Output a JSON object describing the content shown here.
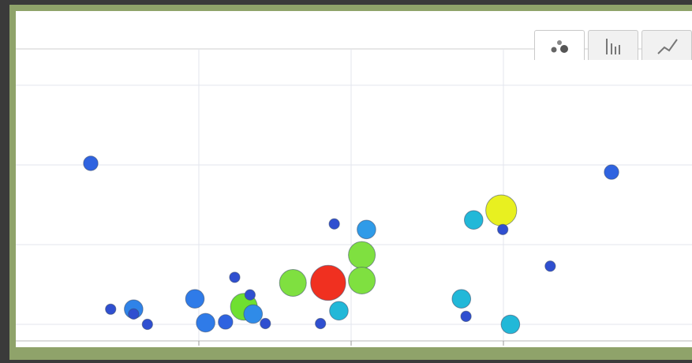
{
  "chart_tabs": {
    "items": [
      {
        "icon": "bubble-chart-icon",
        "active": true
      },
      {
        "icon": "bar-chart-icon",
        "active": false
      },
      {
        "icon": "line-chart-icon",
        "active": false
      }
    ]
  },
  "chart_data": {
    "type": "scatter",
    "title": "",
    "xlabel": "",
    "ylabel": "",
    "grid": true,
    "xlim": [
      0,
      4.2
    ],
    "ylim": [
      0,
      3.2
    ],
    "points": [
      {
        "x": 0.45,
        "y": 2.02,
        "size": 2,
        "color": "#2f63e0"
      },
      {
        "x": 0.58,
        "y": 0.19,
        "size": 1,
        "color": "#2f4fd0"
      },
      {
        "x": 0.73,
        "y": 0.19,
        "size": 3,
        "color": "#2f83e8"
      },
      {
        "x": 0.73,
        "y": 0.13,
        "size": 1,
        "color": "#2f4fd0"
      },
      {
        "x": 0.82,
        "y": 0.0,
        "size": 1,
        "color": "#2f4fd0"
      },
      {
        "x": 1.13,
        "y": 0.32,
        "size": 3,
        "color": "#2f7be8"
      },
      {
        "x": 1.2,
        "y": 0.02,
        "size": 3,
        "color": "#2f7be8"
      },
      {
        "x": 1.33,
        "y": 0.03,
        "size": 2,
        "color": "#2f63e0"
      },
      {
        "x": 1.39,
        "y": 0.59,
        "size": 1,
        "color": "#2f4fd0"
      },
      {
        "x": 1.45,
        "y": 0.22,
        "size": 5,
        "color": "#6fe030"
      },
      {
        "x": 1.49,
        "y": 0.37,
        "size": 1,
        "color": "#2f4fd0"
      },
      {
        "x": 1.51,
        "y": 0.13,
        "size": 3,
        "color": "#2f8be8"
      },
      {
        "x": 1.59,
        "y": 0.01,
        "size": 1,
        "color": "#2f4fd0"
      },
      {
        "x": 1.77,
        "y": 0.52,
        "size": 5,
        "color": "#7fe040"
      },
      {
        "x": 2.0,
        "y": 0.52,
        "size": 7,
        "color": "#f03020"
      },
      {
        "x": 1.95,
        "y": 0.01,
        "size": 1,
        "color": "#2f4fd0"
      },
      {
        "x": 2.04,
        "y": 1.26,
        "size": 1,
        "color": "#2f4fd0"
      },
      {
        "x": 2.07,
        "y": 0.17,
        "size": 3,
        "color": "#22b8d8"
      },
      {
        "x": 2.22,
        "y": 0.87,
        "size": 5,
        "color": "#7fe040"
      },
      {
        "x": 2.22,
        "y": 0.55,
        "size": 5,
        "color": "#7fe040"
      },
      {
        "x": 2.25,
        "y": 1.19,
        "size": 3,
        "color": "#2f9be8"
      },
      {
        "x": 2.87,
        "y": 0.32,
        "size": 3,
        "color": "#22b8d8"
      },
      {
        "x": 2.9,
        "y": 0.1,
        "size": 1,
        "color": "#2f4fd0"
      },
      {
        "x": 2.95,
        "y": 1.31,
        "size": 3,
        "color": "#22b8d8"
      },
      {
        "x": 3.13,
        "y": 1.43,
        "size": 6,
        "color": "#e8f020"
      },
      {
        "x": 3.14,
        "y": 1.19,
        "size": 1,
        "color": "#2f4fd0"
      },
      {
        "x": 3.19,
        "y": 0.0,
        "size": 3,
        "color": "#22b8d8"
      },
      {
        "x": 3.45,
        "y": 0.73,
        "size": 1,
        "color": "#2f4fd0"
      },
      {
        "x": 3.85,
        "y": 1.91,
        "size": 2,
        "color": "#2f63e0"
      }
    ]
  }
}
